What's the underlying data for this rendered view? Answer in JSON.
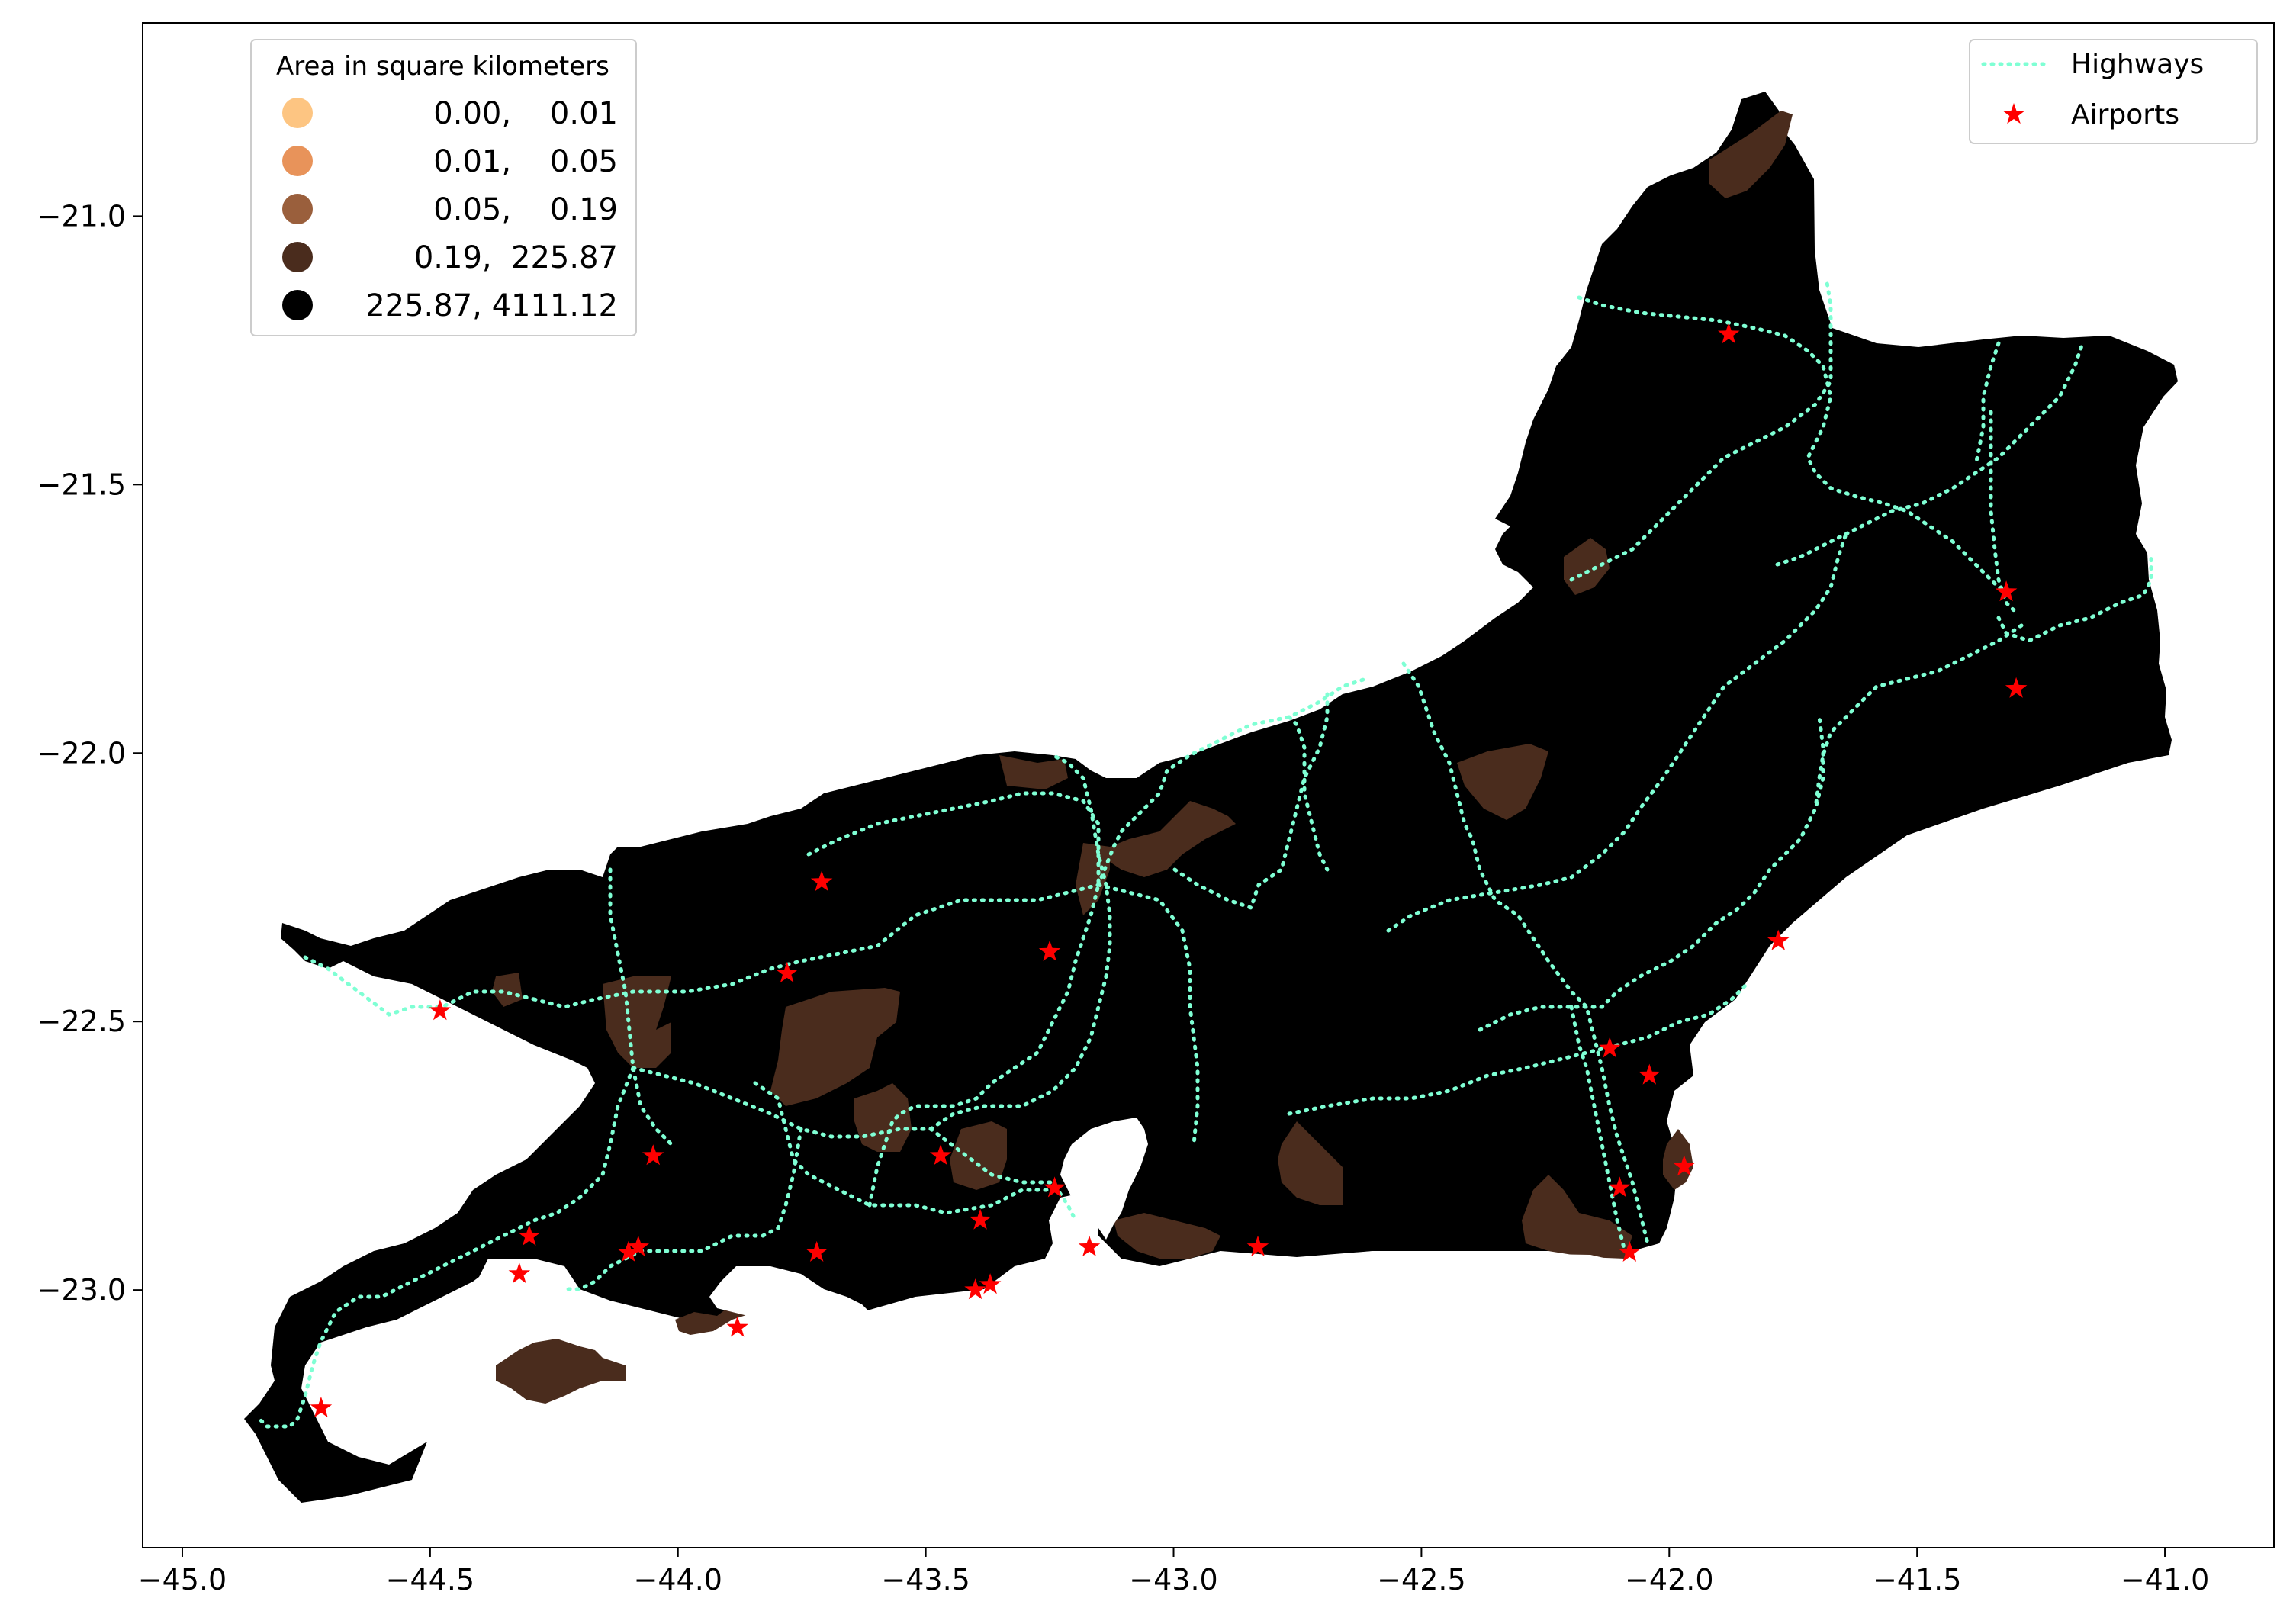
{
  "chart_data": {
    "type": "map",
    "xlim": [
      -45.08,
      -40.78
    ],
    "ylim": [
      -23.48,
      -20.64
    ],
    "x_ticks": [
      -45.0,
      -44.5,
      -44.0,
      -43.5,
      -43.0,
      -42.5,
      -42.0,
      -41.5,
      -41.0
    ],
    "x_tick_labels": [
      "−45.0",
      "−44.5",
      "−44.0",
      "−43.5",
      "−43.0",
      "−42.5",
      "−42.0",
      "−41.5",
      "−41.0"
    ],
    "y_ticks": [
      -21.0,
      -21.5,
      -22.0,
      -22.5,
      -23.0
    ],
    "y_tick_labels": [
      "−21.0",
      "−21.5",
      "−22.0",
      "−22.5",
      "−23.0"
    ],
    "grid": false,
    "area_legend": {
      "title": "Area in square kilometers",
      "placement": "upper-left",
      "classes": [
        {
          "label": "0.00,    0.01",
          "color": "#fdc582"
        },
        {
          "label": "0.01,    0.05",
          "color": "#e8935a"
        },
        {
          "label": "0.05,    0.19",
          "color": "#9a5f3c"
        },
        {
          "label": "0.19,  225.87",
          "color": "#4a2c1d"
        },
        {
          "label": "225.87, 4111.12",
          "color": "#000000"
        }
      ]
    },
    "layers_legend": {
      "placement": "upper-right",
      "entries": [
        {
          "label": "Highways",
          "color": "#7fffd4",
          "style": "dotted-line"
        },
        {
          "label": "Airports",
          "color": "#ff0000",
          "style": "star"
        }
      ]
    },
    "airports": [
      {
        "x": -44.72,
        "y": -23.22
      },
      {
        "x": -44.48,
        "y": -22.48
      },
      {
        "x": -44.32,
        "y": -22.97
      },
      {
        "x": -44.3,
        "y": -22.9
      },
      {
        "x": -44.1,
        "y": -22.93
      },
      {
        "x": -44.08,
        "y": -22.92
      },
      {
        "x": -44.05,
        "y": -22.75
      },
      {
        "x": -43.88,
        "y": -23.07
      },
      {
        "x": -43.78,
        "y": -22.41
      },
      {
        "x": -43.72,
        "y": -22.93
      },
      {
        "x": -43.71,
        "y": -22.24
      },
      {
        "x": -43.47,
        "y": -22.75
      },
      {
        "x": -43.4,
        "y": -23.0
      },
      {
        "x": -43.39,
        "y": -22.87
      },
      {
        "x": -43.37,
        "y": -22.99
      },
      {
        "x": -43.25,
        "y": -22.37
      },
      {
        "x": -43.24,
        "y": -22.81
      },
      {
        "x": -43.17,
        "y": -22.92
      },
      {
        "x": -42.83,
        "y": -22.92
      },
      {
        "x": -42.12,
        "y": -22.55
      },
      {
        "x": -42.1,
        "y": -22.81
      },
      {
        "x": -42.08,
        "y": -22.93
      },
      {
        "x": -42.04,
        "y": -22.6
      },
      {
        "x": -41.97,
        "y": -22.77
      },
      {
        "x": -41.88,
        "y": -21.22
      },
      {
        "x": -41.78,
        "y": -22.35
      },
      {
        "x": -41.32,
        "y": -21.7
      },
      {
        "x": -41.3,
        "y": -21.88
      }
    ]
  }
}
